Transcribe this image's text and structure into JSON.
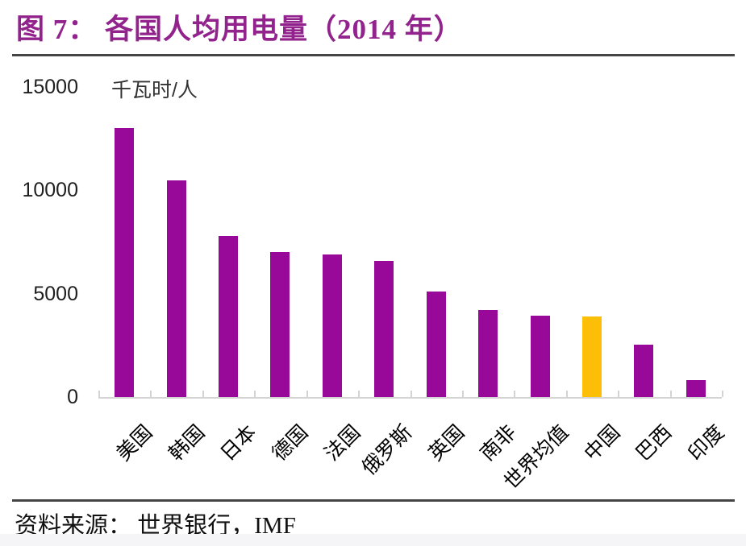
{
  "figure": {
    "title": "图 7： 各国人均用电量（2014 年）",
    "title_color": "#92238C",
    "rule_color": "#454545",
    "source": "资料来源： 世界银行，IMF"
  },
  "chart_data": {
    "type": "bar",
    "title": "图 7： 各国人均用电量（2014 年）",
    "unit_label": "千瓦时/人",
    "categories": [
      "美国",
      "韩国",
      "日本",
      "德国",
      "法国",
      "俄罗斯",
      "英国",
      "南非",
      "世界均值",
      "中国",
      "巴西",
      "印度"
    ],
    "category_keys": [
      "usa",
      "south-korea",
      "japan",
      "germany",
      "france",
      "russia",
      "uk",
      "south-africa",
      "world-average",
      "china",
      "brazil",
      "india"
    ],
    "values": [
      13000,
      10500,
      7800,
      7000,
      6900,
      6600,
      5100,
      4200,
      3950,
      3900,
      2550,
      800
    ],
    "highlight_category": "中国",
    "bar_color": "#990999",
    "highlight_color": "#FDBE08",
    "axis_color": "#D4D4D4",
    "ylabel": "千瓦时/人",
    "xlabel": "",
    "ylim": [
      0,
      15000
    ],
    "yticks": [
      "0",
      "5000",
      "10000",
      "15000"
    ],
    "ytick_values": [
      0,
      5000,
      10000,
      15000
    ],
    "grid": false,
    "legend_position": "none"
  }
}
